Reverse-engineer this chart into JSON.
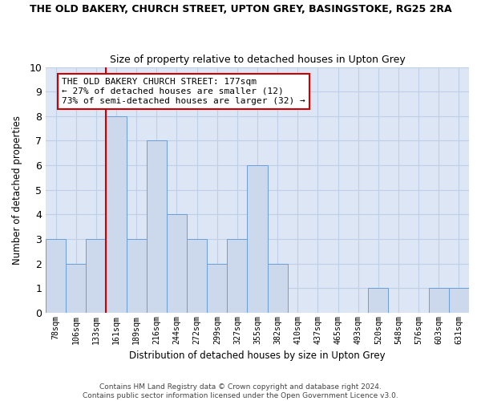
{
  "title": "THE OLD BAKERY, CHURCH STREET, UPTON GREY, BASINGSTOKE, RG25 2RA",
  "subtitle": "Size of property relative to detached houses in Upton Grey",
  "xlabel": "Distribution of detached houses by size in Upton Grey",
  "ylabel": "Number of detached properties",
  "categories": [
    "78sqm",
    "106sqm",
    "133sqm",
    "161sqm",
    "189sqm",
    "216sqm",
    "244sqm",
    "272sqm",
    "299sqm",
    "327sqm",
    "355sqm",
    "382sqm",
    "410sqm",
    "437sqm",
    "465sqm",
    "493sqm",
    "520sqm",
    "548sqm",
    "576sqm",
    "603sqm",
    "631sqm"
  ],
  "values": [
    3,
    2,
    3,
    8,
    3,
    7,
    4,
    3,
    2,
    3,
    6,
    2,
    0,
    0,
    0,
    0,
    1,
    0,
    0,
    1,
    1
  ],
  "bar_color": "#ccd9ed",
  "bar_edge_color": "#6a9fd8",
  "ref_line_index": 3,
  "ref_line_color": "#cc0000",
  "ylim": [
    0,
    10
  ],
  "yticks": [
    0,
    1,
    2,
    3,
    4,
    5,
    6,
    7,
    8,
    9,
    10
  ],
  "annotation_text": "THE OLD BAKERY CHURCH STREET: 177sqm\n← 27% of detached houses are smaller (12)\n73% of semi-detached houses are larger (32) →",
  "annotation_box_color": "#ffffff",
  "annotation_box_edge_color": "#cc0000",
  "background_color": "#ffffff",
  "plot_bg_color": "#dce6f5",
  "grid_color": "#c0cfe8",
  "footer_line1": "Contains HM Land Registry data © Crown copyright and database right 2024.",
  "footer_line2": "Contains public sector information licensed under the Open Government Licence v3.0."
}
